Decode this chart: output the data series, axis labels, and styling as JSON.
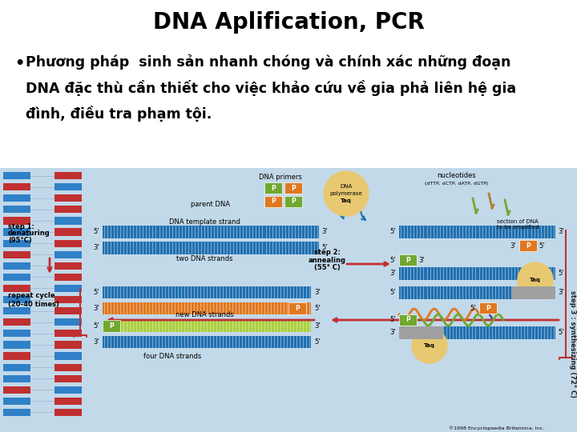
{
  "title": "DNA Aplification, PCR",
  "title_fontsize": 20,
  "title_fontweight": "bold",
  "title_color": "#000000",
  "bullet_text_line1": "Phương pháp  sinh sản nhanh chóng và chính xác những đoạn",
  "bullet_text_line2": "DNA đặc thù cần thiết cho việc khảo cứu về gia phả liên hệ gia",
  "bullet_text_line3": "đình, điều tra phạm tội.",
  "bullet_fontsize": 12.5,
  "bullet_fontweight": "bold",
  "bullet_color": "#000000",
  "background_color": "#ffffff",
  "diagram_bg_color": "#c2d9ea",
  "blue_dna": "#2070b0",
  "orange_color": "#e07820",
  "green_color": "#70a830",
  "lime_color": "#a8d040",
  "red_arrow": "#c03030",
  "taq_color": "#e8c870",
  "gray_color": "#a0a0a0",
  "small_font": 6.0,
  "tiny_font": 5.0
}
